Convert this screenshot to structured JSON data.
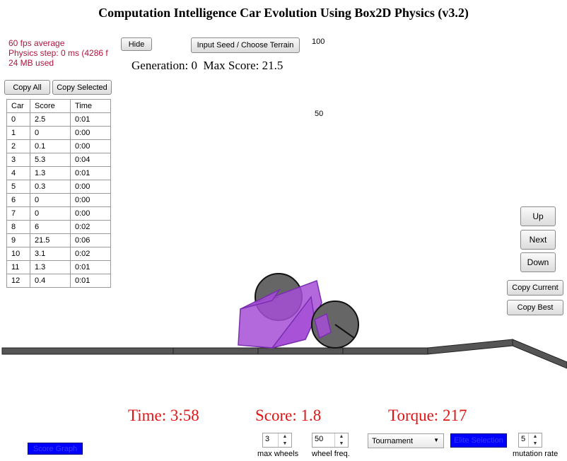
{
  "title": "Computation Intelligence Car Evolution Using Box2D Physics (v3.2)",
  "stats": {
    "fps": "60 fps average",
    "physics": "Physics step: 0 ms (4286 f",
    "memory": "24 MB used"
  },
  "buttons": {
    "hide": "Hide",
    "seed": "Input Seed / Choose Terrain",
    "copy_all": "Copy All",
    "copy_selected": "Copy Selected",
    "up": "Up",
    "next": "Next",
    "down": "Down",
    "copy_current": "Copy Current",
    "copy_best": "Copy Best"
  },
  "generation_text": "Generation: 0  Max Score: 21.5",
  "graph_labels": {
    "top": "100",
    "mid": "50"
  },
  "table": {
    "headers": [
      "Car",
      "Score",
      "Time"
    ],
    "rows": [
      [
        "0",
        "2.5",
        "0:01"
      ],
      [
        "1",
        "0",
        "0:00"
      ],
      [
        "2",
        "0.1",
        "0:00"
      ],
      [
        "3",
        "5.3",
        "0:04"
      ],
      [
        "4",
        "1.3",
        "0:01"
      ],
      [
        "5",
        "0.3",
        "0:00"
      ],
      [
        "6",
        "0",
        "0:00"
      ],
      [
        "7",
        "0",
        "0:00"
      ],
      [
        "8",
        "6",
        "0:02"
      ],
      [
        "9",
        "21.5",
        "0:06"
      ],
      [
        "10",
        "3.1",
        "0:02"
      ],
      [
        "11",
        "1.3",
        "0:01"
      ],
      [
        "12",
        "0.4",
        "0:01"
      ]
    ]
  },
  "status": {
    "time": "Time: 3:58",
    "score": "Score: 1.8",
    "torque": "Torque: 217"
  },
  "controls": {
    "score_graph": "Score Graph",
    "max_wheels_value": "3",
    "max_wheels_label": "max wheels",
    "wheel_freq_value": "50",
    "wheel_freq_label": "wheel freq.",
    "selection_method": "Tournament",
    "elite_selection": "Elite Selection",
    "mutation_value": "5",
    "mutation_label": "mutation rate"
  },
  "colors": {
    "status_red": "#e01414",
    "car_body": "#a64fd6",
    "wheel": "#666666",
    "track": "#555555"
  }
}
